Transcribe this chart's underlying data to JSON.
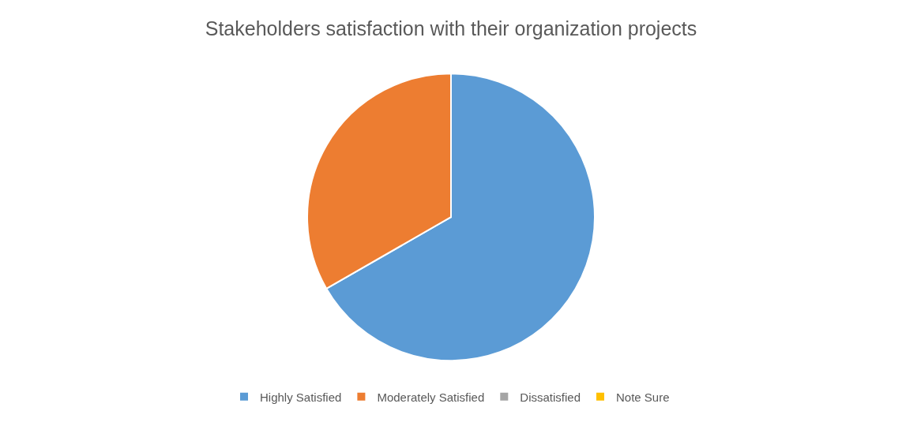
{
  "chart_data": {
    "type": "pie",
    "title": "Stakeholders satisfaction with their organization projects",
    "categories": [
      "Highly Satisfied",
      "Moderately Satisfied",
      "Dissatisfied",
      "Note Sure"
    ],
    "values": [
      66.7,
      33.3,
      0,
      0
    ],
    "colors": [
      "#5b9bd5",
      "#ed7d31",
      "#a5a5a5",
      "#ffc000"
    ],
    "legend": "bottom"
  }
}
